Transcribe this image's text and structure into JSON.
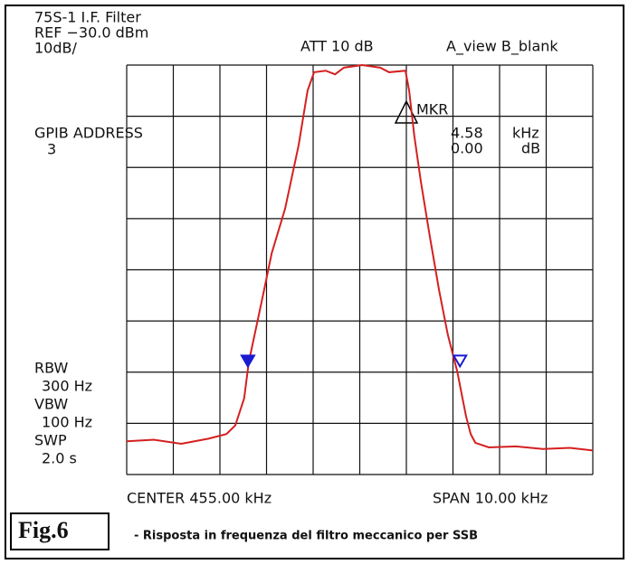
{
  "chart_data": {
    "type": "line",
    "title": "75S-1 I.F. Filter",
    "annotations": {
      "ref": "REF −30.0 dBm",
      "scale": "10dB/",
      "att": "ATT 10 dB",
      "view": "A_view B_blank",
      "gpib": "GPIB ADDRESS",
      "gpib_value": "3",
      "marker": "MKR",
      "marker_freq": "4.58",
      "marker_freq_unit": "kHz",
      "marker_level": "0.00",
      "marker_level_unit": "dB",
      "rbw": "RBW",
      "rbw_value": "300 Hz",
      "vbw": "VBW",
      "vbw_value": "100 Hz",
      "swp": "SWP",
      "swp_value": "2.0 s",
      "center": "CENTER 455.00 kHz",
      "span": "SPAN 10.00 kHz"
    },
    "figure_label": "Fig.6",
    "caption": "- Risposta in frequenza del filtro meccanico per SSB",
    "series": [
      {
        "color": "#d42020",
        "x": [
          450,
          450.58,
          451.17,
          451.75,
          452.14,
          452.33,
          452.52,
          452.62,
          452.91,
          453.11,
          453.4,
          453.69,
          453.88,
          454.02,
          454.27,
          454.47,
          454.66,
          455.05,
          455.44,
          455.63,
          455.98,
          456.06,
          456.17,
          456.31,
          456.5,
          456.7,
          456.89,
          457.09,
          457.28,
          457.38,
          457.48,
          457.77,
          458.35,
          458.93,
          459.51,
          460
        ],
        "values": [
          -103.5,
          -103.2,
          -104,
          -103,
          -102.1,
          -100.4,
          -95.1,
          -88,
          -75.6,
          -66.8,
          -58,
          -45.6,
          -35,
          -31.4,
          -31.1,
          -31.8,
          -30.5,
          -30,
          -30.5,
          -31.4,
          -31.1,
          -35,
          -43.8,
          -52.7,
          -63.3,
          -73.9,
          -82.7,
          -89.8,
          -98.6,
          -102.1,
          -103.8,
          -104.7,
          -104.5,
          -105,
          -104.8,
          -105.3
        ]
      }
    ],
    "markers": {
      "color": "#1a1ad0",
      "x": [
        452.6,
        457.15
      ],
      "values": [
        -88,
        -88
      ]
    },
    "xlim": [
      450,
      460
    ],
    "ylim": [
      -110,
      -30
    ],
    "xticks": [
      450,
      451,
      452,
      453,
      454,
      455,
      456,
      457,
      458,
      459,
      460
    ],
    "yticks": [
      -110,
      -100,
      -90,
      -80,
      -70,
      -60,
      -50,
      -40,
      -30
    ],
    "grid": true
  }
}
